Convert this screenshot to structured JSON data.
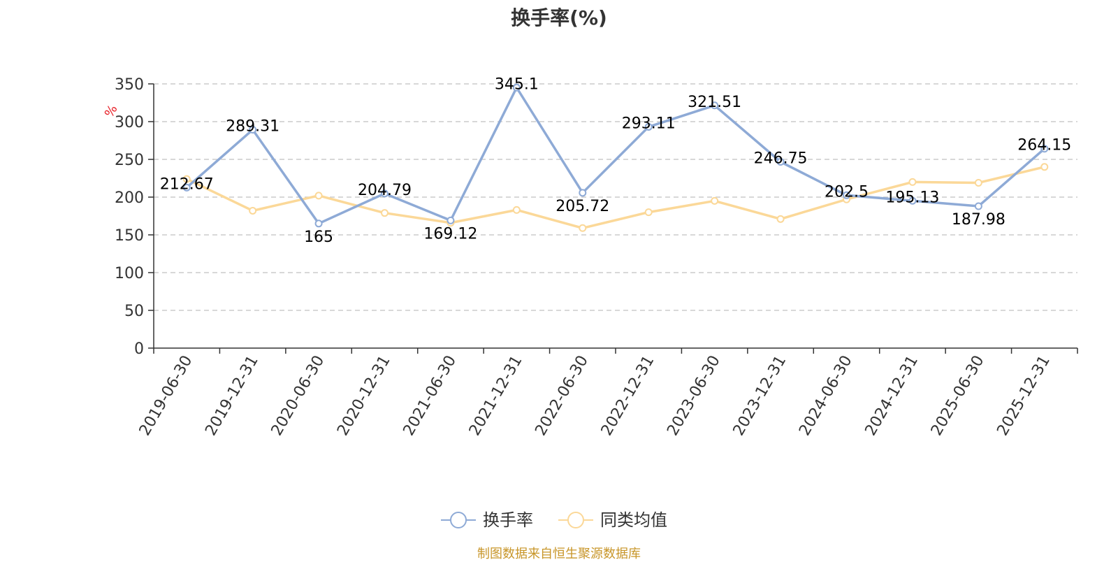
{
  "chart_data": {
    "type": "line",
    "title": "换手率(%)",
    "ylabel": "%",
    "xlabel": "",
    "ylim": [
      0,
      350
    ],
    "yticks": [
      0,
      50,
      100,
      150,
      200,
      250,
      300,
      350
    ],
    "grid": true,
    "legend_position": "bottom",
    "categories": [
      "2019-06-30",
      "2019-12-31",
      "2020-06-30",
      "2020-12-31",
      "2021-06-30",
      "2021-12-31",
      "2022-06-30",
      "2022-12-31",
      "2023-06-30",
      "2023-12-31",
      "2024-06-30",
      "2024-12-31",
      "2025-06-30",
      "2025-12-31"
    ],
    "series": [
      {
        "name": "换手率",
        "color": "#8eaad6",
        "values": [
          212.67,
          289.31,
          165,
          204.79,
          169.12,
          345.1,
          205.72,
          293.11,
          321.51,
          246.75,
          202.5,
          195.13,
          187.98,
          264.15
        ],
        "labels": [
          "212.67",
          "289.31",
          "165",
          "204.79",
          "169.12",
          "345.1",
          "205.72",
          "293.11",
          "321.51",
          "246.75",
          "202.5",
          "195.13",
          "187.98",
          "264.15"
        ]
      },
      {
        "name": "同类均值",
        "color": "#fbd898",
        "values": [
          224,
          182,
          202,
          179,
          166,
          183,
          159,
          180,
          195,
          171,
          197,
          220,
          219,
          240
        ]
      }
    ],
    "source": "制图数据来自恒生聚源数据库"
  }
}
